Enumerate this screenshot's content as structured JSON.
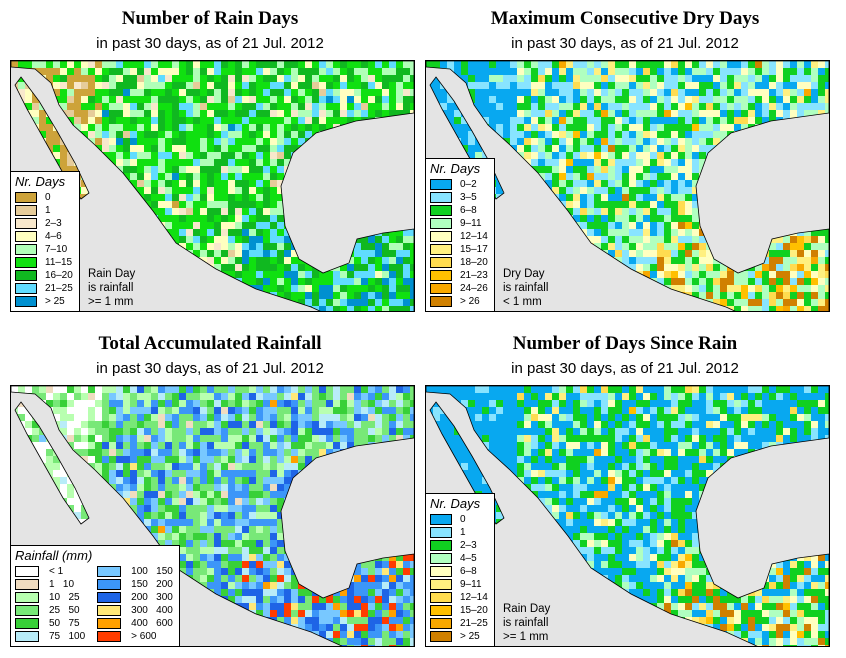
{
  "panels": [
    {
      "title": "Number of Rain Days",
      "subtitle": "in past 30 days, as of  21 Jul. 2012",
      "legend_title": "Nr. Days",
      "note": [
        "Rain Day",
        "is rainfall",
        ">= 1 mm"
      ],
      "legend": [
        {
          "label": "0",
          "color": "#cda33a"
        },
        {
          "label": "1",
          "color": "#e6cc9a"
        },
        {
          "label": "2–3",
          "color": "#f8e8cc"
        },
        {
          "label": "4–6",
          "color": "#ffffc0"
        },
        {
          "label": "7–10",
          "color": "#b0ffb8"
        },
        {
          "label": "11–15",
          "color": "#10e010"
        },
        {
          "label": "16–20",
          "color": "#10b820"
        },
        {
          "label": "21–25",
          "color": "#60dcff"
        },
        {
          "label": "> 25",
          "color": "#0090d0"
        }
      ],
      "weights": [
        1,
        2,
        2,
        3,
        4,
        7,
        6,
        4,
        2
      ]
    },
    {
      "title": "Maximum Consecutive Dry Days",
      "subtitle": "in past 30 days, as of  21 Jul. 2012",
      "legend_title": "Nr. Days",
      "note": [
        "Dry Day",
        "is rainfall",
        "< 1 mm"
      ],
      "legend": [
        {
          "label": "0–2",
          "color": "#08a8f0"
        },
        {
          "label": "3–5",
          "color": "#88e4ff"
        },
        {
          "label": "6–8",
          "color": "#10d020"
        },
        {
          "label": "9–11",
          "color": "#b0ffc0"
        },
        {
          "label": "12–14",
          "color": "#ffffc0"
        },
        {
          "label": "15–17",
          "color": "#fff080"
        },
        {
          "label": "18–20",
          "color": "#ffdc50"
        },
        {
          "label": "21–23",
          "color": "#ffc000"
        },
        {
          "label": "24–26",
          "color": "#f8a800"
        },
        {
          "label": "> 26",
          "color": "#d08000"
        }
      ],
      "weights": [
        7,
        5,
        5,
        4,
        3,
        2,
        1,
        1,
        1,
        1
      ]
    },
    {
      "title": "Total Accumulated Rainfall",
      "subtitle": "in past 30 days, as of  21 Jul. 2012",
      "legend_title": "Rainfall (mm)",
      "legend": [
        {
          "label": "< 1",
          "color": "#ffffff"
        },
        {
          "label": "1   10",
          "color": "#f0dcc0"
        },
        {
          "label": "10   25",
          "color": "#b8ffb0"
        },
        {
          "label": "25   50",
          "color": "#78e878"
        },
        {
          "label": "50   75",
          "color": "#38d038"
        },
        {
          "label": "75   100",
          "color": "#b8ecf8"
        },
        {
          "label": "100   150",
          "color": "#78c8ff"
        },
        {
          "label": "150   200",
          "color": "#3c96f8"
        },
        {
          "label": "200   300",
          "color": "#1e64e6"
        },
        {
          "label": "300   400",
          "color": "#ffe878"
        },
        {
          "label": "400   600",
          "color": "#ffa000"
        },
        {
          "label": "> 600",
          "color": "#ff3c00"
        }
      ],
      "weights": [
        1,
        2,
        5,
        6,
        3,
        2,
        3,
        5,
        5,
        1,
        1,
        0.3
      ]
    },
    {
      "title": "Number of Days Since Rain",
      "subtitle": "in past 30 days, as of  21 Jul. 2012",
      "legend_title": "Nr. Days",
      "note": [
        "Rain Day",
        "is rainfall",
        ">= 1 mm"
      ],
      "legend": [
        {
          "label": "0",
          "color": "#08a8f0"
        },
        {
          "label": "1",
          "color": "#88e4ff"
        },
        {
          "label": "2–3",
          "color": "#10d020"
        },
        {
          "label": "4–5",
          "color": "#b0ffc0"
        },
        {
          "label": "6–8",
          "color": "#ffffc0"
        },
        {
          "label": "9–11",
          "color": "#fff080"
        },
        {
          "label": "12–14",
          "color": "#ffdc50"
        },
        {
          "label": "15–20",
          "color": "#ffc000"
        },
        {
          "label": "21–25",
          "color": "#f8a800"
        },
        {
          "label": "> 25",
          "color": "#d08000"
        }
      ],
      "weights": [
        12,
        3,
        5,
        2,
        2,
        1,
        1,
        0.5,
        0.5,
        0.5
      ]
    }
  ]
}
